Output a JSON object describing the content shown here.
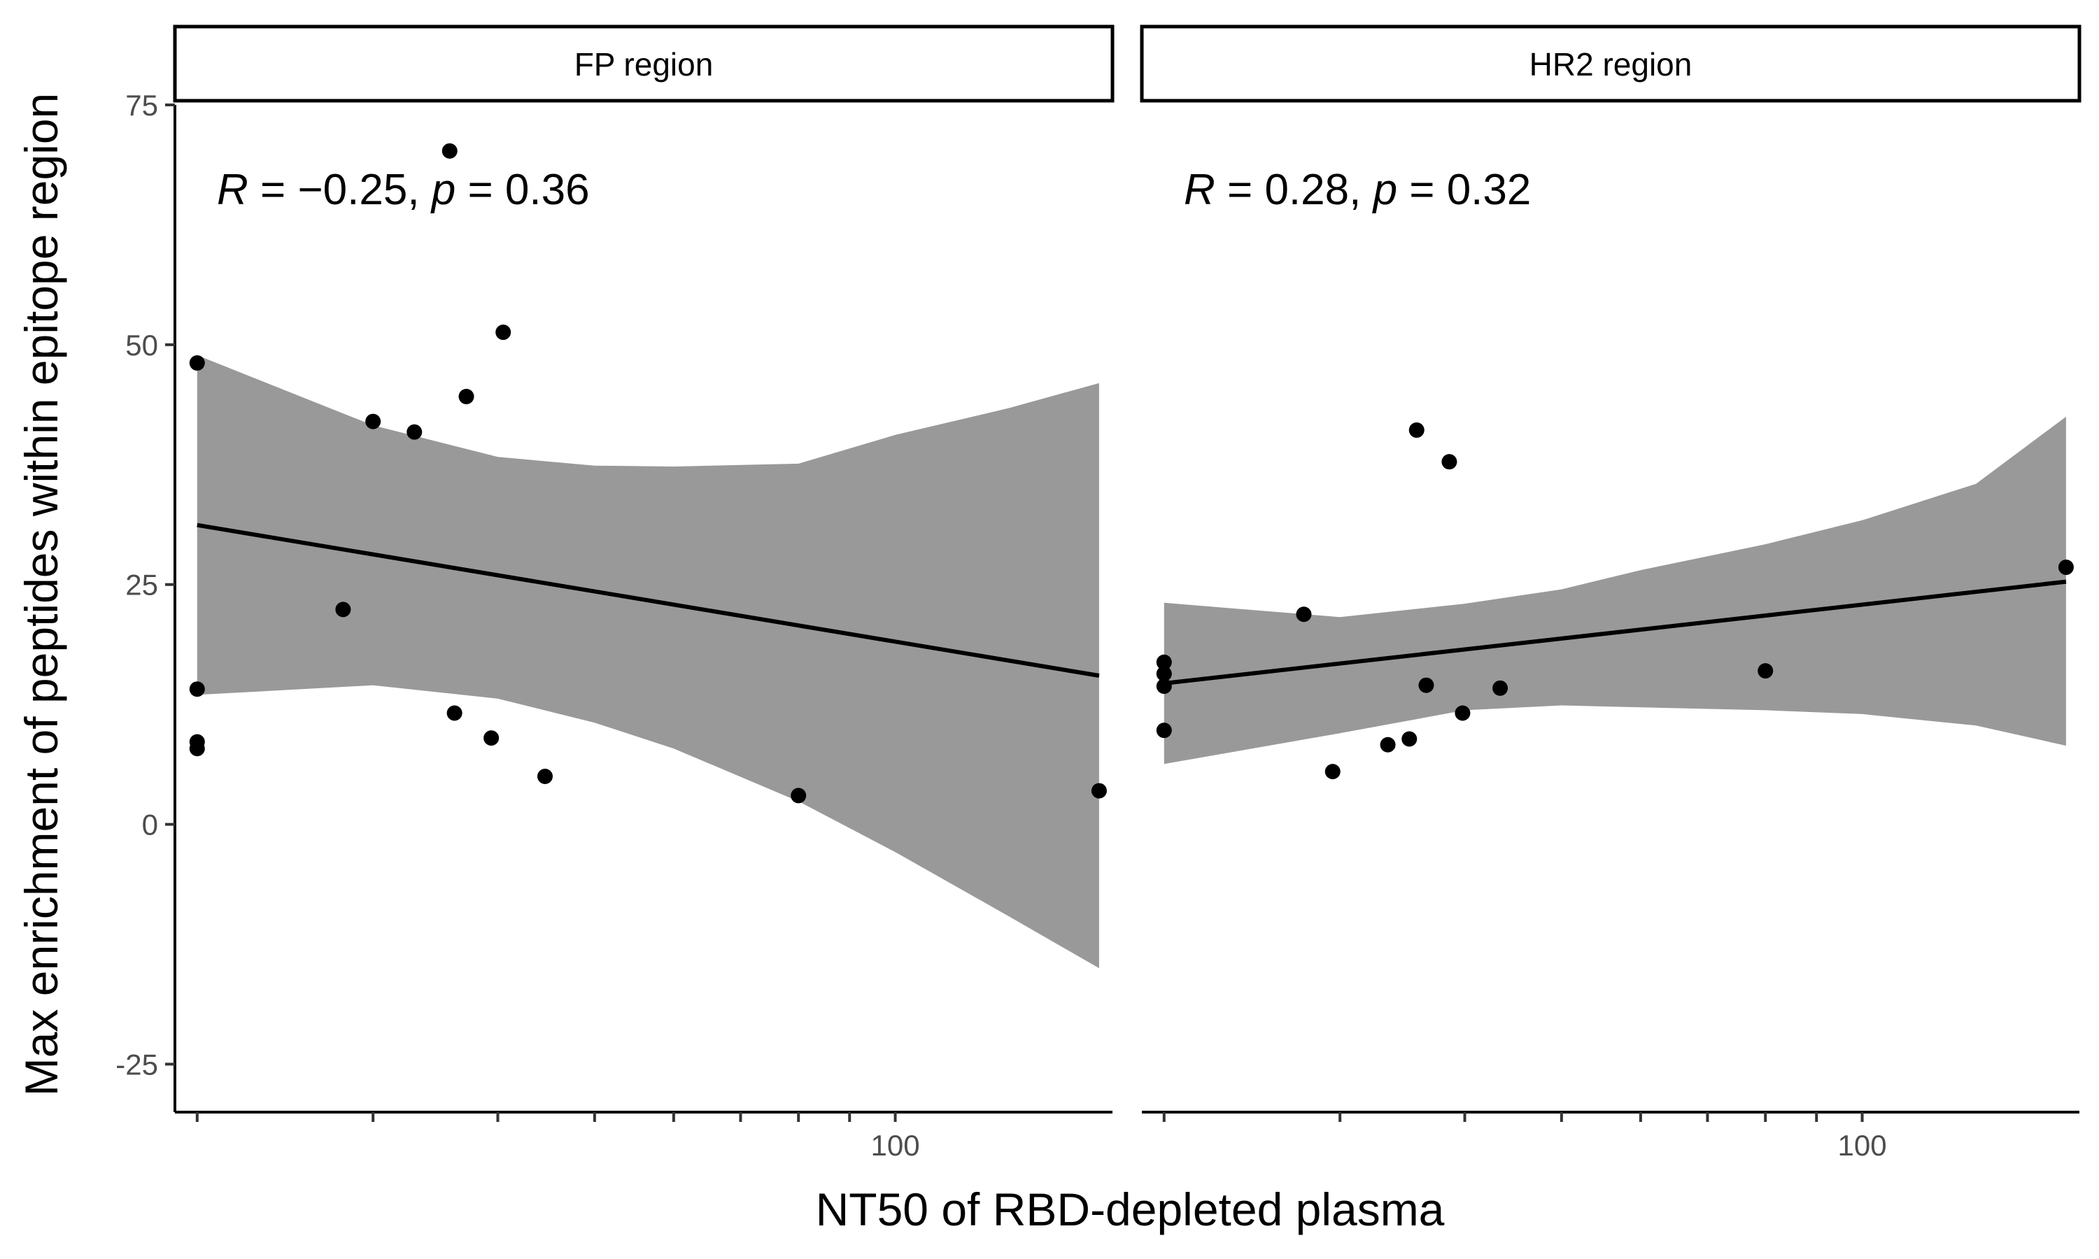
{
  "chart_data": {
    "type": "scatter",
    "x_scale": "log10",
    "xlabel": "NT50 of RBD-depleted plasma",
    "ylabel": "Max enrichment of peptides within epitope region",
    "ylim": [
      -30,
      75
    ],
    "y_ticks": [
      -25,
      0,
      25,
      50,
      75
    ],
    "x_ticks_labeled": [
      100
    ],
    "x_minor_ticks": [
      20,
      30,
      40,
      50,
      60,
      70,
      80,
      90
    ],
    "grid": false,
    "panels": [
      {
        "label": "FP region",
        "annotation": {
          "R": "−0.25",
          "p": "0.36"
        },
        "xlim": [
          19,
          165
        ],
        "points": [
          {
            "x": 20.0,
            "y": 48.1
          },
          {
            "x": 20.0,
            "y": 14.1
          },
          {
            "x": 20.0,
            "y": 8.6
          },
          {
            "x": 20.0,
            "y": 7.9
          },
          {
            "x": 28.0,
            "y": 22.4
          },
          {
            "x": 30.0,
            "y": 42.0
          },
          {
            "x": 33.0,
            "y": 40.9
          },
          {
            "x": 35.8,
            "y": 70.2
          },
          {
            "x": 36.2,
            "y": 11.6
          },
          {
            "x": 37.2,
            "y": 44.6
          },
          {
            "x": 39.4,
            "y": 9.0
          },
          {
            "x": 40.5,
            "y": 51.3
          },
          {
            "x": 44.6,
            "y": 5.0
          },
          {
            "x": 80.0,
            "y": 3.0
          },
          {
            "x": 160.0,
            "y": 3.5
          }
        ],
        "fit": {
          "x": [
            20,
            30,
            40,
            50,
            60,
            80,
            100,
            130,
            160
          ],
          "y": [
            31.2,
            28.0,
            25.7,
            24.0,
            22.6,
            20.5,
            18.8,
            16.9,
            15.5
          ],
          "lower": [
            13.5,
            14.5,
            13.1,
            10.6,
            7.9,
            2.4,
            -2.9,
            -9.6,
            -15.0
          ],
          "upper": [
            48.9,
            41.6,
            38.3,
            37.4,
            37.3,
            37.6,
            40.6,
            43.4,
            46.0
          ]
        }
      },
      {
        "label": "HR2 region",
        "annotation": {
          "R": "0.28",
          "p": "0.32"
        },
        "xlim": [
          19,
          165
        ],
        "points": [
          {
            "x": 20.0,
            "y": 16.9
          },
          {
            "x": 20.0,
            "y": 15.7
          },
          {
            "x": 20.0,
            "y": 14.4
          },
          {
            "x": 20.0,
            "y": 9.8
          },
          {
            "x": 27.6,
            "y": 21.9
          },
          {
            "x": 29.5,
            "y": 5.5
          },
          {
            "x": 33.5,
            "y": 8.3
          },
          {
            "x": 35.2,
            "y": 8.9
          },
          {
            "x": 35.8,
            "y": 41.1
          },
          {
            "x": 36.6,
            "y": 14.5
          },
          {
            "x": 38.6,
            "y": 37.8
          },
          {
            "x": 39.8,
            "y": 11.6
          },
          {
            "x": 43.4,
            "y": 14.2
          },
          {
            "x": 80.0,
            "y": 16.0
          },
          {
            "x": 160.0,
            "y": 26.8
          }
        ],
        "fit": {
          "x": [
            20,
            30,
            40,
            50,
            60,
            80,
            100,
            130,
            160
          ],
          "y": [
            14.7,
            16.3,
            17.4,
            18.3,
            19.0,
            20.1,
            20.9,
            22.2,
            25.3
          ],
          "lower": [
            6.3,
            9.5,
            11.9,
            12.4,
            12.2,
            11.9,
            11.5,
            10.3,
            8.2
          ],
          "upper": [
            23.1,
            21.6,
            23.0,
            24.5,
            26.5,
            29.2,
            31.7,
            35.5,
            42.5
          ]
        }
      }
    ]
  }
}
